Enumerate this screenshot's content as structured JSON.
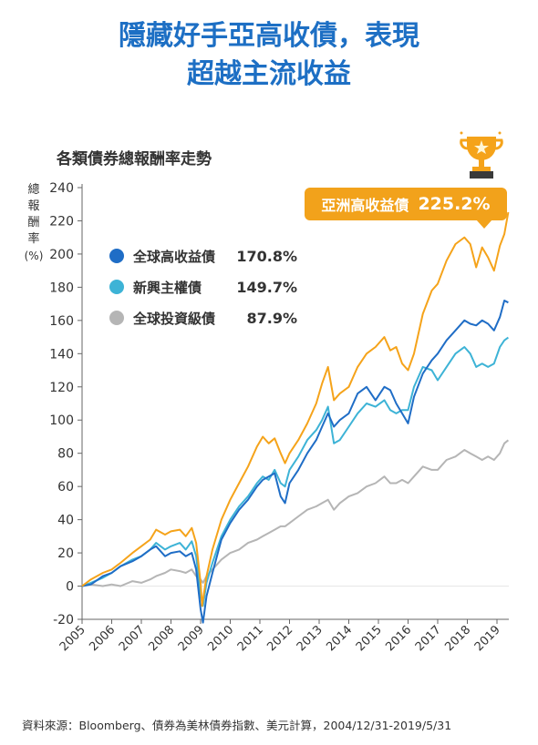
{
  "header": {
    "title_line1": "隱藏好手亞高收債，表現",
    "title_line2": "超越主流收益"
  },
  "chart_data": {
    "type": "line",
    "title": "各類債券總報酬率走勢",
    "ylabel_chars": [
      "總",
      "報",
      "酬",
      "率"
    ],
    "ylabel_unit": "(%)",
    "ylim": [
      -20,
      240
    ],
    "yticks": [
      -20,
      0,
      20,
      40,
      60,
      80,
      100,
      120,
      140,
      160,
      180,
      200,
      220,
      240
    ],
    "xlim": [
      2005.0,
      2019.4
    ],
    "xticks": [
      "2005",
      "2006",
      "2007",
      "2008",
      "2009",
      "2010",
      "2011",
      "2012",
      "2013",
      "2014",
      "2015",
      "2016",
      "2017",
      "2018",
      "2019"
    ],
    "grid": false,
    "legend_position": "top-left",
    "highlight": {
      "label": "亞洲高收益債",
      "value": "225.2%"
    },
    "series": [
      {
        "name": "亞洲高收益債",
        "final": "225.2%",
        "color": "#f5a31a",
        "points": [
          [
            2005.0,
            0
          ],
          [
            2005.3,
            4
          ],
          [
            2005.7,
            8
          ],
          [
            2006.0,
            10
          ],
          [
            2006.3,
            14
          ],
          [
            2006.7,
            20
          ],
          [
            2007.0,
            24
          ],
          [
            2007.3,
            28
          ],
          [
            2007.5,
            34
          ],
          [
            2007.8,
            31
          ],
          [
            2008.0,
            33
          ],
          [
            2008.3,
            34
          ],
          [
            2008.5,
            30
          ],
          [
            2008.7,
            35
          ],
          [
            2008.85,
            26
          ],
          [
            2009.0,
            2
          ],
          [
            2009.05,
            -12
          ],
          [
            2009.2,
            6
          ],
          [
            2009.4,
            22
          ],
          [
            2009.7,
            40
          ],
          [
            2010.0,
            52
          ],
          [
            2010.3,
            62
          ],
          [
            2010.6,
            72
          ],
          [
            2010.9,
            84
          ],
          [
            2011.1,
            90
          ],
          [
            2011.3,
            86
          ],
          [
            2011.5,
            89
          ],
          [
            2011.7,
            80
          ],
          [
            2011.85,
            74
          ],
          [
            2012.0,
            80
          ],
          [
            2012.3,
            88
          ],
          [
            2012.6,
            98
          ],
          [
            2012.9,
            110
          ],
          [
            2013.1,
            122
          ],
          [
            2013.3,
            132
          ],
          [
            2013.5,
            112
          ],
          [
            2013.7,
            116
          ],
          [
            2014.0,
            120
          ],
          [
            2014.3,
            132
          ],
          [
            2014.6,
            140
          ],
          [
            2014.9,
            144
          ],
          [
            2015.2,
            150
          ],
          [
            2015.4,
            142
          ],
          [
            2015.6,
            144
          ],
          [
            2015.8,
            134
          ],
          [
            2016.0,
            130
          ],
          [
            2016.2,
            140
          ],
          [
            2016.5,
            164
          ],
          [
            2016.8,
            178
          ],
          [
            2017.0,
            182
          ],
          [
            2017.3,
            196
          ],
          [
            2017.6,
            206
          ],
          [
            2017.9,
            210
          ],
          [
            2018.1,
            206
          ],
          [
            2018.3,
            192
          ],
          [
            2018.5,
            204
          ],
          [
            2018.7,
            198
          ],
          [
            2018.9,
            190
          ],
          [
            2019.1,
            205
          ],
          [
            2019.25,
            212
          ],
          [
            2019.38,
            225.2
          ]
        ]
      },
      {
        "name": "全球高收益債",
        "final": "170.8%",
        "color": "#1f6dc6",
        "points": [
          [
            2005.0,
            0
          ],
          [
            2005.3,
            1
          ],
          [
            2005.7,
            6
          ],
          [
            2006.0,
            8
          ],
          [
            2006.3,
            12
          ],
          [
            2006.7,
            15
          ],
          [
            2007.0,
            18
          ],
          [
            2007.3,
            22
          ],
          [
            2007.5,
            24
          ],
          [
            2007.8,
            18
          ],
          [
            2008.0,
            20
          ],
          [
            2008.3,
            21
          ],
          [
            2008.5,
            18
          ],
          [
            2008.7,
            20
          ],
          [
            2008.85,
            10
          ],
          [
            2009.0,
            -14
          ],
          [
            2009.08,
            -22
          ],
          [
            2009.2,
            -6
          ],
          [
            2009.4,
            8
          ],
          [
            2009.7,
            28
          ],
          [
            2010.0,
            38
          ],
          [
            2010.3,
            46
          ],
          [
            2010.6,
            52
          ],
          [
            2010.9,
            60
          ],
          [
            2011.1,
            64
          ],
          [
            2011.3,
            66
          ],
          [
            2011.5,
            68
          ],
          [
            2011.7,
            54
          ],
          [
            2011.85,
            50
          ],
          [
            2012.0,
            62
          ],
          [
            2012.3,
            70
          ],
          [
            2012.6,
            80
          ],
          [
            2012.9,
            88
          ],
          [
            2013.1,
            96
          ],
          [
            2013.3,
            104
          ],
          [
            2013.5,
            96
          ],
          [
            2013.7,
            100
          ],
          [
            2014.0,
            104
          ],
          [
            2014.3,
            116
          ],
          [
            2014.6,
            120
          ],
          [
            2014.9,
            112
          ],
          [
            2015.2,
            120
          ],
          [
            2015.4,
            118
          ],
          [
            2015.6,
            110
          ],
          [
            2015.8,
            104
          ],
          [
            2016.0,
            98
          ],
          [
            2016.2,
            114
          ],
          [
            2016.5,
            128
          ],
          [
            2016.8,
            136
          ],
          [
            2017.0,
            140
          ],
          [
            2017.3,
            148
          ],
          [
            2017.6,
            154
          ],
          [
            2017.9,
            160
          ],
          [
            2018.1,
            158
          ],
          [
            2018.3,
            157
          ],
          [
            2018.5,
            160
          ],
          [
            2018.7,
            158
          ],
          [
            2018.9,
            154
          ],
          [
            2019.1,
            162
          ],
          [
            2019.25,
            172
          ],
          [
            2019.38,
            170.8
          ]
        ]
      },
      {
        "name": "新興主權債",
        "final": "149.7%",
        "color": "#3db3d6",
        "points": [
          [
            2005.0,
            0
          ],
          [
            2005.3,
            2
          ],
          [
            2005.7,
            5
          ],
          [
            2006.0,
            8
          ],
          [
            2006.3,
            12
          ],
          [
            2006.7,
            16
          ],
          [
            2007.0,
            18
          ],
          [
            2007.3,
            22
          ],
          [
            2007.5,
            26
          ],
          [
            2007.8,
            22
          ],
          [
            2008.0,
            24
          ],
          [
            2008.3,
            26
          ],
          [
            2008.5,
            22
          ],
          [
            2008.7,
            27
          ],
          [
            2008.85,
            18
          ],
          [
            2009.0,
            -6
          ],
          [
            2009.08,
            -12
          ],
          [
            2009.2,
            2
          ],
          [
            2009.4,
            14
          ],
          [
            2009.7,
            30
          ],
          [
            2010.0,
            40
          ],
          [
            2010.3,
            48
          ],
          [
            2010.6,
            54
          ],
          [
            2010.9,
            62
          ],
          [
            2011.1,
            66
          ],
          [
            2011.3,
            64
          ],
          [
            2011.5,
            70
          ],
          [
            2011.7,
            62
          ],
          [
            2011.85,
            60
          ],
          [
            2012.0,
            70
          ],
          [
            2012.3,
            78
          ],
          [
            2012.6,
            88
          ],
          [
            2012.9,
            94
          ],
          [
            2013.1,
            100
          ],
          [
            2013.3,
            108
          ],
          [
            2013.5,
            86
          ],
          [
            2013.7,
            88
          ],
          [
            2014.0,
            96
          ],
          [
            2014.3,
            104
          ],
          [
            2014.6,
            110
          ],
          [
            2014.9,
            108
          ],
          [
            2015.2,
            112
          ],
          [
            2015.4,
            106
          ],
          [
            2015.6,
            104
          ],
          [
            2015.8,
            106
          ],
          [
            2016.0,
            106
          ],
          [
            2016.2,
            120
          ],
          [
            2016.5,
            132
          ],
          [
            2016.8,
            130
          ],
          [
            2017.0,
            124
          ],
          [
            2017.3,
            132
          ],
          [
            2017.6,
            140
          ],
          [
            2017.9,
            144
          ],
          [
            2018.1,
            140
          ],
          [
            2018.3,
            132
          ],
          [
            2018.5,
            134
          ],
          [
            2018.7,
            132
          ],
          [
            2018.9,
            134
          ],
          [
            2019.1,
            144
          ],
          [
            2019.25,
            148
          ],
          [
            2019.38,
            149.7
          ]
        ]
      },
      {
        "name": "全球投資級債",
        "final": "87.9%",
        "color": "#b5b5b5",
        "points": [
          [
            2005.0,
            0
          ],
          [
            2005.3,
            1
          ],
          [
            2005.7,
            0
          ],
          [
            2006.0,
            1
          ],
          [
            2006.3,
            0
          ],
          [
            2006.7,
            3
          ],
          [
            2007.0,
            2
          ],
          [
            2007.3,
            4
          ],
          [
            2007.5,
            6
          ],
          [
            2007.8,
            8
          ],
          [
            2008.0,
            10
          ],
          [
            2008.3,
            9
          ],
          [
            2008.5,
            8
          ],
          [
            2008.7,
            10
          ],
          [
            2008.85,
            6
          ],
          [
            2009.0,
            4
          ],
          [
            2009.08,
            2
          ],
          [
            2009.2,
            6
          ],
          [
            2009.4,
            10
          ],
          [
            2009.7,
            16
          ],
          [
            2010.0,
            20
          ],
          [
            2010.3,
            22
          ],
          [
            2010.6,
            26
          ],
          [
            2010.9,
            28
          ],
          [
            2011.1,
            30
          ],
          [
            2011.3,
            32
          ],
          [
            2011.5,
            34
          ],
          [
            2011.7,
            36
          ],
          [
            2011.85,
            36
          ],
          [
            2012.0,
            38
          ],
          [
            2012.3,
            42
          ],
          [
            2012.6,
            46
          ],
          [
            2012.9,
            48
          ],
          [
            2013.1,
            50
          ],
          [
            2013.3,
            52
          ],
          [
            2013.5,
            46
          ],
          [
            2013.7,
            50
          ],
          [
            2014.0,
            54
          ],
          [
            2014.3,
            56
          ],
          [
            2014.6,
            60
          ],
          [
            2014.9,
            62
          ],
          [
            2015.2,
            66
          ],
          [
            2015.4,
            62
          ],
          [
            2015.6,
            62
          ],
          [
            2015.8,
            64
          ],
          [
            2016.0,
            62
          ],
          [
            2016.2,
            66
          ],
          [
            2016.5,
            72
          ],
          [
            2016.8,
            70
          ],
          [
            2017.0,
            70
          ],
          [
            2017.3,
            76
          ],
          [
            2017.6,
            78
          ],
          [
            2017.9,
            82
          ],
          [
            2018.1,
            80
          ],
          [
            2018.3,
            78
          ],
          [
            2018.5,
            76
          ],
          [
            2018.7,
            78
          ],
          [
            2018.9,
            76
          ],
          [
            2019.1,
            80
          ],
          [
            2019.25,
            86
          ],
          [
            2019.38,
            87.9
          ]
        ]
      }
    ]
  },
  "source_text": "資料來源：Bloomberg、債券為美林債券指數、美元計算，2004/12/31-2019/5/31"
}
